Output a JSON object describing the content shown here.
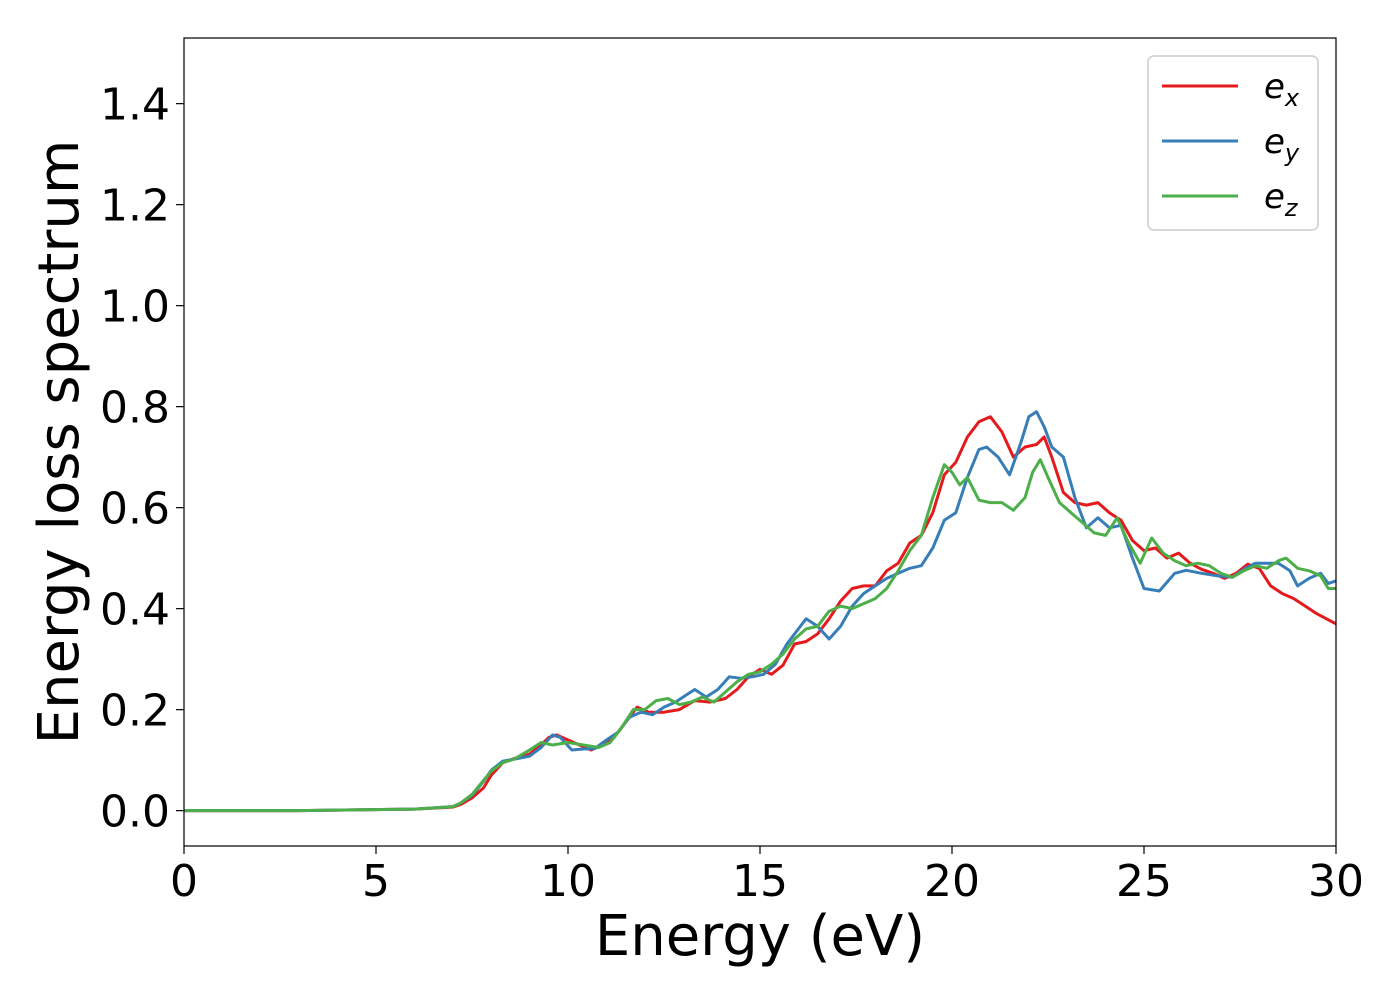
{
  "chart_data": {
    "type": "line",
    "title": "",
    "xlabel": "Energy (eV)",
    "ylabel": "Energy loss spectrum",
    "xlim": [
      0,
      30
    ],
    "ylim": [
      -0.07,
      1.53
    ],
    "xticks": [
      0,
      5,
      10,
      15,
      20,
      25,
      30
    ],
    "xtick_labels": [
      "0",
      "5",
      "10",
      "15",
      "20",
      "25",
      "30"
    ],
    "yticks": [
      0.0,
      0.2,
      0.4,
      0.6,
      0.8,
      1.0,
      1.2,
      1.4
    ],
    "ytick_labels": [
      "0.0",
      "0.2",
      "0.4",
      "0.6",
      "0.8",
      "1.0",
      "1.2",
      "1.4"
    ],
    "grid": false,
    "legend": {
      "position": "top-right"
    },
    "series": [
      {
        "name": "e",
        "subscript": "x",
        "color": "#e41a1c",
        "points": [
          [
            0,
            0.0
          ],
          [
            3,
            0.0
          ],
          [
            6,
            0.003
          ],
          [
            7,
            0.007
          ],
          [
            7.2,
            0.012
          ],
          [
            7.5,
            0.025
          ],
          [
            7.8,
            0.045
          ],
          [
            8,
            0.07
          ],
          [
            8.3,
            0.095
          ],
          [
            8.6,
            0.103
          ],
          [
            9,
            0.112
          ],
          [
            9.3,
            0.13
          ],
          [
            9.5,
            0.145
          ],
          [
            9.7,
            0.15
          ],
          [
            10,
            0.14
          ],
          [
            10.3,
            0.13
          ],
          [
            10.6,
            0.12
          ],
          [
            10.9,
            0.13
          ],
          [
            11.2,
            0.145
          ],
          [
            11.5,
            0.175
          ],
          [
            11.8,
            0.205
          ],
          [
            12.1,
            0.195
          ],
          [
            12.5,
            0.195
          ],
          [
            12.9,
            0.2
          ],
          [
            13.3,
            0.218
          ],
          [
            13.7,
            0.215
          ],
          [
            14.1,
            0.222
          ],
          [
            14.4,
            0.24
          ],
          [
            14.7,
            0.265
          ],
          [
            15,
            0.28
          ],
          [
            15.3,
            0.27
          ],
          [
            15.6,
            0.288
          ],
          [
            15.9,
            0.33
          ],
          [
            16.2,
            0.335
          ],
          [
            16.5,
            0.35
          ],
          [
            16.8,
            0.38
          ],
          [
            17.1,
            0.415
          ],
          [
            17.4,
            0.44
          ],
          [
            17.7,
            0.445
          ],
          [
            18.0,
            0.445
          ],
          [
            18.3,
            0.475
          ],
          [
            18.6,
            0.49
          ],
          [
            18.9,
            0.53
          ],
          [
            19.2,
            0.545
          ],
          [
            19.5,
            0.59
          ],
          [
            19.8,
            0.665
          ],
          [
            20.1,
            0.69
          ],
          [
            20.4,
            0.74
          ],
          [
            20.7,
            0.77
          ],
          [
            21.0,
            0.78
          ],
          [
            21.3,
            0.75
          ],
          [
            21.6,
            0.7
          ],
          [
            21.9,
            0.72
          ],
          [
            22.2,
            0.725
          ],
          [
            22.4,
            0.74
          ],
          [
            22.6,
            0.7
          ],
          [
            22.9,
            0.63
          ],
          [
            23.2,
            0.61
          ],
          [
            23.5,
            0.605
          ],
          [
            23.8,
            0.61
          ],
          [
            24.1,
            0.59
          ],
          [
            24.4,
            0.575
          ],
          [
            24.7,
            0.535
          ],
          [
            25.0,
            0.515
          ],
          [
            25.3,
            0.52
          ],
          [
            25.6,
            0.5
          ],
          [
            25.9,
            0.51
          ],
          [
            26.2,
            0.49
          ],
          [
            26.5,
            0.478
          ],
          [
            26.8,
            0.47
          ],
          [
            27.1,
            0.46
          ],
          [
            27.4,
            0.47
          ],
          [
            27.7,
            0.488
          ],
          [
            28.0,
            0.48
          ],
          [
            28.3,
            0.445
          ],
          [
            28.6,
            0.43
          ],
          [
            28.9,
            0.42
          ],
          [
            29.2,
            0.405
          ],
          [
            29.5,
            0.39
          ],
          [
            29.8,
            0.378
          ],
          [
            30.0,
            0.37
          ]
        ]
      },
      {
        "name": "e",
        "subscript": "y",
        "color": "#377eb8",
        "points": [
          [
            0,
            0.0
          ],
          [
            3,
            0.0
          ],
          [
            6,
            0.003
          ],
          [
            7,
            0.008
          ],
          [
            7.2,
            0.015
          ],
          [
            7.5,
            0.03
          ],
          [
            7.8,
            0.058
          ],
          [
            8,
            0.08
          ],
          [
            8.3,
            0.098
          ],
          [
            8.6,
            0.102
          ],
          [
            9,
            0.108
          ],
          [
            9.3,
            0.125
          ],
          [
            9.6,
            0.15
          ],
          [
            9.8,
            0.145
          ],
          [
            10.1,
            0.12
          ],
          [
            10.4,
            0.122
          ],
          [
            10.7,
            0.123
          ],
          [
            11.0,
            0.14
          ],
          [
            11.3,
            0.155
          ],
          [
            11.6,
            0.185
          ],
          [
            11.9,
            0.195
          ],
          [
            12.2,
            0.19
          ],
          [
            12.5,
            0.205
          ],
          [
            12.8,
            0.215
          ],
          [
            13.1,
            0.23
          ],
          [
            13.3,
            0.24
          ],
          [
            13.6,
            0.225
          ],
          [
            13.9,
            0.24
          ],
          [
            14.2,
            0.265
          ],
          [
            14.5,
            0.262
          ],
          [
            14.8,
            0.265
          ],
          [
            15.1,
            0.27
          ],
          [
            15.4,
            0.29
          ],
          [
            15.7,
            0.33
          ],
          [
            16.0,
            0.36
          ],
          [
            16.2,
            0.38
          ],
          [
            16.5,
            0.365
          ],
          [
            16.8,
            0.34
          ],
          [
            17.1,
            0.365
          ],
          [
            17.4,
            0.405
          ],
          [
            17.7,
            0.43
          ],
          [
            18.0,
            0.445
          ],
          [
            18.3,
            0.46
          ],
          [
            18.6,
            0.47
          ],
          [
            18.9,
            0.48
          ],
          [
            19.2,
            0.485
          ],
          [
            19.5,
            0.52
          ],
          [
            19.8,
            0.575
          ],
          [
            20.1,
            0.59
          ],
          [
            20.4,
            0.66
          ],
          [
            20.7,
            0.715
          ],
          [
            20.9,
            0.72
          ],
          [
            21.2,
            0.7
          ],
          [
            21.5,
            0.665
          ],
          [
            21.8,
            0.73
          ],
          [
            22.0,
            0.78
          ],
          [
            22.2,
            0.79
          ],
          [
            22.4,
            0.76
          ],
          [
            22.6,
            0.72
          ],
          [
            22.9,
            0.7
          ],
          [
            23.2,
            0.62
          ],
          [
            23.5,
            0.56
          ],
          [
            23.8,
            0.58
          ],
          [
            24.1,
            0.56
          ],
          [
            24.4,
            0.565
          ],
          [
            24.7,
            0.5
          ],
          [
            25.0,
            0.44
          ],
          [
            25.4,
            0.435
          ],
          [
            25.8,
            0.47
          ],
          [
            26.1,
            0.476
          ],
          [
            26.5,
            0.47
          ],
          [
            26.9,
            0.465
          ],
          [
            27.3,
            0.462
          ],
          [
            27.6,
            0.478
          ],
          [
            27.9,
            0.49
          ],
          [
            28.2,
            0.49
          ],
          [
            28.5,
            0.49
          ],
          [
            28.8,
            0.475
          ],
          [
            29.0,
            0.445
          ],
          [
            29.3,
            0.46
          ],
          [
            29.6,
            0.47
          ],
          [
            29.8,
            0.45
          ],
          [
            30.0,
            0.455
          ]
        ]
      },
      {
        "name": "e",
        "subscript": "z",
        "color": "#4daf4a",
        "points": [
          [
            0,
            0.0
          ],
          [
            3,
            0.0
          ],
          [
            6,
            0.003
          ],
          [
            7,
            0.008
          ],
          [
            7.2,
            0.015
          ],
          [
            7.5,
            0.032
          ],
          [
            7.8,
            0.06
          ],
          [
            8,
            0.078
          ],
          [
            8.3,
            0.095
          ],
          [
            8.6,
            0.102
          ],
          [
            9,
            0.12
          ],
          [
            9.3,
            0.135
          ],
          [
            9.6,
            0.13
          ],
          [
            10.0,
            0.135
          ],
          [
            10.4,
            0.13
          ],
          [
            10.8,
            0.125
          ],
          [
            11.1,
            0.135
          ],
          [
            11.4,
            0.165
          ],
          [
            11.7,
            0.2
          ],
          [
            12.0,
            0.2
          ],
          [
            12.3,
            0.218
          ],
          [
            12.6,
            0.222
          ],
          [
            12.9,
            0.21
          ],
          [
            13.2,
            0.215
          ],
          [
            13.5,
            0.225
          ],
          [
            13.8,
            0.215
          ],
          [
            14.1,
            0.235
          ],
          [
            14.4,
            0.255
          ],
          [
            14.7,
            0.27
          ],
          [
            15.0,
            0.275
          ],
          [
            15.3,
            0.29
          ],
          [
            15.6,
            0.31
          ],
          [
            15.9,
            0.34
          ],
          [
            16.2,
            0.36
          ],
          [
            16.5,
            0.365
          ],
          [
            16.8,
            0.395
          ],
          [
            17.1,
            0.405
          ],
          [
            17.4,
            0.4
          ],
          [
            17.7,
            0.41
          ],
          [
            18.0,
            0.42
          ],
          [
            18.3,
            0.44
          ],
          [
            18.6,
            0.475
          ],
          [
            18.9,
            0.515
          ],
          [
            19.2,
            0.545
          ],
          [
            19.5,
            0.62
          ],
          [
            19.8,
            0.685
          ],
          [
            20.0,
            0.67
          ],
          [
            20.2,
            0.645
          ],
          [
            20.4,
            0.66
          ],
          [
            20.7,
            0.615
          ],
          [
            21.0,
            0.61
          ],
          [
            21.3,
            0.61
          ],
          [
            21.6,
            0.595
          ],
          [
            21.9,
            0.62
          ],
          [
            22.1,
            0.67
          ],
          [
            22.3,
            0.695
          ],
          [
            22.5,
            0.66
          ],
          [
            22.8,
            0.61
          ],
          [
            23.1,
            0.59
          ],
          [
            23.4,
            0.57
          ],
          [
            23.7,
            0.55
          ],
          [
            24.0,
            0.545
          ],
          [
            24.3,
            0.58
          ],
          [
            24.6,
            0.53
          ],
          [
            24.9,
            0.49
          ],
          [
            25.2,
            0.54
          ],
          [
            25.5,
            0.51
          ],
          [
            25.8,
            0.495
          ],
          [
            26.1,
            0.485
          ],
          [
            26.4,
            0.49
          ],
          [
            26.7,
            0.485
          ],
          [
            27.0,
            0.47
          ],
          [
            27.3,
            0.462
          ],
          [
            27.6,
            0.475
          ],
          [
            27.9,
            0.485
          ],
          [
            28.2,
            0.48
          ],
          [
            28.5,
            0.495
          ],
          [
            28.7,
            0.5
          ],
          [
            29.0,
            0.48
          ],
          [
            29.3,
            0.475
          ],
          [
            29.6,
            0.465
          ],
          [
            29.8,
            0.44
          ],
          [
            30.0,
            0.44
          ]
        ]
      }
    ]
  }
}
